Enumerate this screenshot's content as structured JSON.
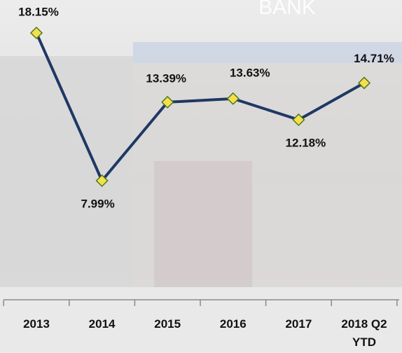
{
  "chart_data": {
    "type": "line",
    "categories": [
      "2013",
      "2014",
      "2015",
      "2016",
      "2017",
      "2018 Q2 YTD"
    ],
    "values": [
      18.15,
      7.99,
      13.39,
      13.63,
      12.18,
      14.71
    ],
    "value_labels": [
      "18.15%",
      "7.99%",
      "13.39%",
      "13.63%",
      "12.18%",
      "14.71%"
    ],
    "color": "#1f3864",
    "marker_color": "#f5df4d",
    "background_text": "BANK"
  }
}
